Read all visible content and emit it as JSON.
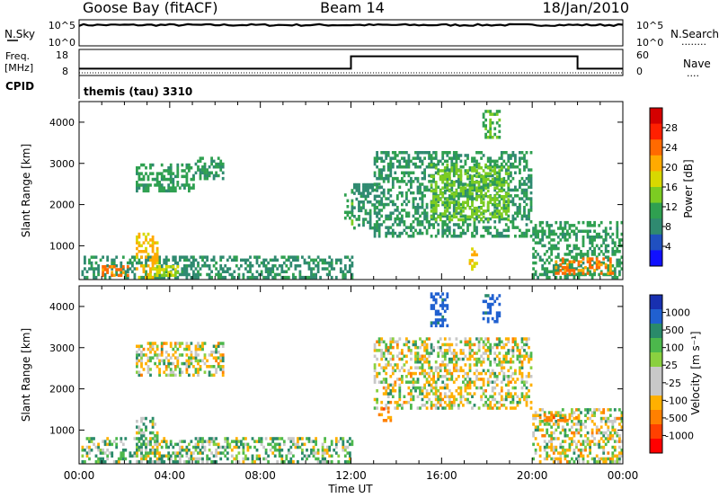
{
  "header": {
    "station": "Goose Bay (fitACF)",
    "beam": "Beam 14",
    "date": "18/Jan/2010"
  },
  "nsky_panel": {
    "left_label": "N.Sky",
    "left_ticks": [
      "10^5",
      "10^0"
    ],
    "right_ticks": [
      "10^5",
      "10^0"
    ],
    "right_label": "N.Search",
    "right_label_line": "........"
  },
  "freq_panel": {
    "left_label_1": "Freq.",
    "left_label_2": "[MHz]",
    "left_ticks": [
      "18",
      "8"
    ],
    "right_ticks": [
      "60",
      "0"
    ],
    "right_label": "Nave",
    "right_label_line": "....",
    "cpid_label": "CPID",
    "cpid_value": "themis (tau) 3310"
  },
  "power_panel": {
    "ylabel": "Slant Range [km]",
    "yticks": [
      "4000",
      "3000",
      "2000",
      "1000"
    ],
    "colorbar_label": "Power [dB]",
    "colorbar_ticks": [
      "28",
      "24",
      "20",
      "16",
      "12",
      "8",
      "4"
    ],
    "colorbar_colors": [
      "#d40000",
      "#ff2000",
      "#ff6a00",
      "#ffaa00",
      "#d8d800",
      "#7ccc22",
      "#2fa050",
      "#2f8a70",
      "#2050c0",
      "#1010ff"
    ]
  },
  "velocity_panel": {
    "ylabel": "Slant Range [km]",
    "yticks": [
      "4000",
      "3000",
      "2000",
      "1000"
    ],
    "colorbar_label": "Velocity [m s⁻¹]",
    "colorbar_ticks": [
      "1000",
      "500",
      "100",
      "25",
      "-25",
      "-100",
      "-500",
      "-1000"
    ],
    "colorbar_colors": [
      "#1830b0",
      "#2060d0",
      "#2a8a6a",
      "#4cb84c",
      "#8ad040",
      "#c8c8c8",
      "#c8c8c8",
      "#ffb000",
      "#ff8000",
      "#ff4000",
      "#ff0000"
    ]
  },
  "xaxis": {
    "label": "Time UT",
    "ticks": [
      "00:00",
      "04:00",
      "08:00",
      "12:00",
      "16:00",
      "20:00",
      "00:00"
    ]
  },
  "chart_data": [
    {
      "type": "line",
      "title": "N.Sky",
      "x_range_hours": [
        0,
        24
      ],
      "scale": "log",
      "ylim": [
        "10^0",
        "10^5"
      ],
      "series": [
        {
          "name": "N.Sky",
          "level": "near 10^4 throughout the day"
        }
      ]
    },
    {
      "type": "line",
      "title": "Freq. [MHz]",
      "x_range_hours": [
        0,
        24
      ],
      "ylim": [
        8,
        18
      ],
      "series": [
        {
          "name": "Freq. [MHz]",
          "x": [
            0,
            12,
            12,
            22,
            22,
            24
          ],
          "y": [
            10,
            10,
            16,
            16,
            10,
            10
          ]
        },
        {
          "name": "Nave",
          "x": [
            0,
            24
          ],
          "y": [
            8,
            8
          ]
        }
      ]
    },
    {
      "type": "heatmap",
      "title": "Power [dB]",
      "x_range_hours": [
        0,
        24
      ],
      "ylim": [
        180,
        4500
      ],
      "y_unit": "km",
      "colorbar_range": [
        0,
        32
      ],
      "regions": [
        {
          "t0": 2.5,
          "t1": 5.0,
          "r0": 2300,
          "r1": 3000,
          "v": 10
        },
        {
          "t0": 5.0,
          "t1": 6.3,
          "r0": 2600,
          "r1": 3100,
          "v": 9
        },
        {
          "t0": 0.1,
          "t1": 12.0,
          "r0": 200,
          "r1": 700,
          "v": 8
        },
        {
          "t0": 1.0,
          "t1": 2.2,
          "r0": 250,
          "r1": 500,
          "v": 24
        },
        {
          "t0": 2.5,
          "t1": 3.5,
          "r0": 200,
          "r1": 1300,
          "v": 20
        },
        {
          "t0": 3.3,
          "t1": 4.3,
          "r0": 250,
          "r1": 500,
          "v": 16
        },
        {
          "t0": 11.7,
          "t1": 12.0,
          "r0": 1500,
          "r1": 2300,
          "v": 12
        },
        {
          "t0": 12.0,
          "t1": 13.2,
          "r0": 1400,
          "r1": 2500,
          "v": 8
        },
        {
          "t0": 13.0,
          "t1": 20.0,
          "r0": 1200,
          "r1": 3300,
          "v": 9
        },
        {
          "t0": 15.5,
          "t1": 19.0,
          "r0": 1600,
          "r1": 3000,
          "v": 14
        },
        {
          "t0": 17.8,
          "t1": 18.6,
          "r0": 3600,
          "r1": 4300,
          "v": 12
        },
        {
          "t0": 17.2,
          "t1": 17.6,
          "r0": 400,
          "r1": 900,
          "v": 20
        },
        {
          "t0": 20.0,
          "t1": 24.0,
          "r0": 200,
          "r1": 1600,
          "v": 10
        },
        {
          "t0": 21.0,
          "t1": 23.6,
          "r0": 300,
          "r1": 700,
          "v": 24
        }
      ]
    },
    {
      "type": "heatmap",
      "title": "Velocity [m s⁻¹]",
      "x_range_hours": [
        0,
        24
      ],
      "ylim": [
        180,
        4500
      ],
      "y_unit": "km",
      "colorbar_range": [
        -1000,
        1000
      ],
      "regions": [
        {
          "t0": 2.5,
          "t1": 6.3,
          "r0": 2300,
          "r1": 3100,
          "v": 0
        },
        {
          "t0": 0.1,
          "t1": 12.0,
          "r0": 200,
          "r1": 800,
          "v": 60
        },
        {
          "t0": 2.5,
          "t1": 3.5,
          "r0": 200,
          "r1": 1300,
          "v": 80
        },
        {
          "t0": 13.0,
          "t1": 20.0,
          "r0": 1500,
          "r1": 3200,
          "v": 0
        },
        {
          "t0": 13.2,
          "t1": 13.7,
          "r0": 1200,
          "r1": 1500,
          "v": -200
        },
        {
          "t0": 15.5,
          "t1": 16.3,
          "r0": 3500,
          "r1": 4300,
          "v": 400
        },
        {
          "t0": 17.8,
          "t1": 18.6,
          "r0": 3600,
          "r1": 4300,
          "v": 400
        },
        {
          "t0": 20.0,
          "t1": 24.0,
          "r0": 200,
          "r1": 1500,
          "v": 0
        },
        {
          "t0": 20.3,
          "t1": 22.0,
          "r0": 1200,
          "r1": 1400,
          "v": -200
        }
      ]
    }
  ]
}
